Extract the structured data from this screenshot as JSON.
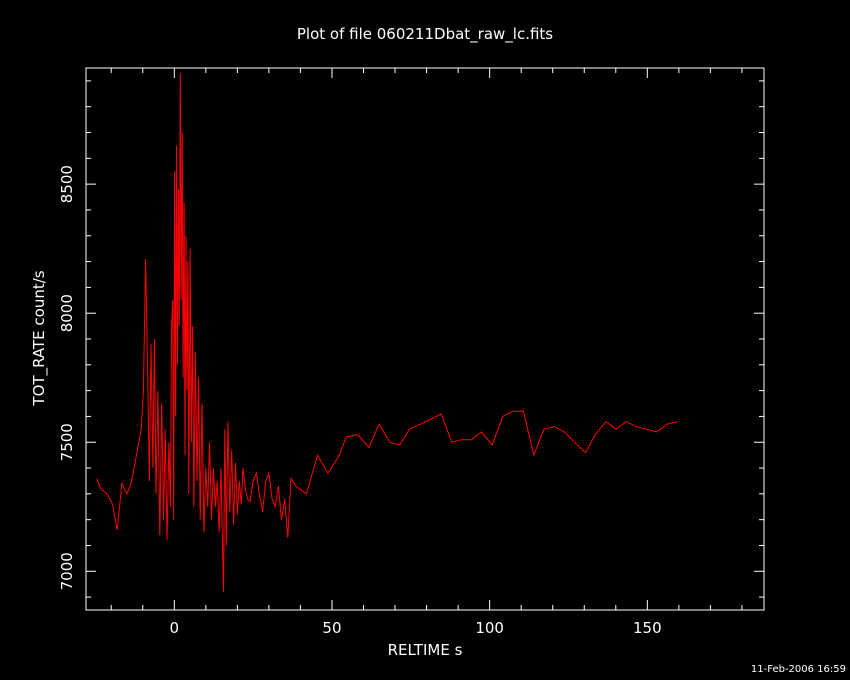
{
  "chart_data": {
    "type": "line",
    "title": "Plot of file 060211Dbat_raw_lc.fits",
    "xlabel": "RELTIME  s",
    "ylabel": "TOT_RATE  count/s",
    "xlim": [
      -28,
      187
    ],
    "ylim": [
      6850,
      8950
    ],
    "x_ticks": [
      0,
      50,
      100,
      150
    ],
    "y_ticks": [
      7000,
      7500,
      8000,
      8500
    ],
    "grid": false,
    "legend": "none",
    "series": [
      {
        "color": "#ff0000",
        "points": [
          [
            -24.6,
            7360
          ],
          [
            -23.4,
            7320
          ],
          [
            -21.3,
            7300
          ],
          [
            -19.6,
            7260
          ],
          [
            -18.1,
            7160
          ],
          [
            -16.6,
            7340
          ],
          [
            -15.0,
            7300
          ],
          [
            -13.7,
            7340
          ],
          [
            -12.0,
            7450
          ],
          [
            -10.5,
            7550
          ],
          [
            -9.8,
            7700
          ],
          [
            -9.1,
            8210
          ],
          [
            -8.5,
            7800
          ],
          [
            -7.9,
            7350
          ],
          [
            -7.4,
            7880
          ],
          [
            -6.8,
            7400
          ],
          [
            -6.3,
            7900
          ],
          [
            -5.8,
            7300
          ],
          [
            -5.2,
            7700
          ],
          [
            -4.6,
            7140
          ],
          [
            -4.0,
            7650
          ],
          [
            -3.4,
            7200
          ],
          [
            -2.9,
            7550
          ],
          [
            -2.3,
            7120
          ],
          [
            -1.7,
            7500
          ],
          [
            -1.2,
            7250
          ],
          [
            -0.9,
            7950
          ],
          [
            -0.5,
            8050
          ],
          [
            -0.2,
            7200
          ],
          [
            0.1,
            8550
          ],
          [
            0.4,
            7600
          ],
          [
            0.7,
            8650
          ],
          [
            1.0,
            7800
          ],
          [
            1.3,
            8480
          ],
          [
            1.6,
            7950
          ],
          [
            1.9,
            8930
          ],
          [
            2.2,
            8050
          ],
          [
            2.5,
            8700
          ],
          [
            2.8,
            7750
          ],
          [
            3.1,
            8430
          ],
          [
            3.4,
            7450
          ],
          [
            3.7,
            8300
          ],
          [
            4.0,
            7700
          ],
          [
            4.3,
            8200
          ],
          [
            4.6,
            7300
          ],
          [
            5.0,
            8250
          ],
          [
            5.4,
            7500
          ],
          [
            5.8,
            7950
          ],
          [
            6.2,
            7250
          ],
          [
            6.7,
            7850
          ],
          [
            7.2,
            7350
          ],
          [
            7.7,
            7750
          ],
          [
            8.2,
            7200
          ],
          [
            8.8,
            7650
          ],
          [
            9.4,
            7150
          ],
          [
            10.0,
            7400
          ],
          [
            10.6,
            7250
          ],
          [
            11.2,
            7500
          ],
          [
            11.8,
            7200
          ],
          [
            12.4,
            7400
          ],
          [
            13.0,
            7250
          ],
          [
            13.6,
            7350
          ],
          [
            14.2,
            7150
          ],
          [
            14.8,
            7400
          ],
          [
            15.3,
            7100
          ],
          [
            15.6,
            6920
          ],
          [
            16.0,
            7550
          ],
          [
            16.5,
            7100
          ],
          [
            17.0,
            7580
          ],
          [
            17.6,
            7230
          ],
          [
            18.2,
            7470
          ],
          [
            18.8,
            7180
          ],
          [
            19.4,
            7420
          ],
          [
            20.0,
            7220
          ],
          [
            20.6,
            7350
          ],
          [
            21.2,
            7260
          ],
          [
            21.8,
            7400
          ],
          [
            22.5,
            7320
          ],
          [
            23.2,
            7280
          ],
          [
            24.0,
            7270
          ],
          [
            25.0,
            7350
          ],
          [
            26.0,
            7380
          ],
          [
            27.0,
            7300
          ],
          [
            28.0,
            7230
          ],
          [
            29.0,
            7350
          ],
          [
            30.0,
            7380
          ],
          [
            31.0,
            7280
          ],
          [
            32.0,
            7250
          ],
          [
            33.0,
            7330
          ],
          [
            34.0,
            7200
          ],
          [
            35.0,
            7280
          ],
          [
            36.0,
            7130
          ],
          [
            37.0,
            7360
          ],
          [
            38.6,
            7330
          ],
          [
            41.9,
            7300
          ],
          [
            45.4,
            7450
          ],
          [
            48.7,
            7380
          ],
          [
            51.9,
            7440
          ],
          [
            54.6,
            7520
          ],
          [
            58.2,
            7530
          ],
          [
            61.7,
            7480
          ],
          [
            64.9,
            7570
          ],
          [
            68.3,
            7500
          ],
          [
            71.5,
            7490
          ],
          [
            74.6,
            7550
          ],
          [
            78.0,
            7570
          ],
          [
            81.4,
            7590
          ],
          [
            84.6,
            7610
          ],
          [
            88.0,
            7500
          ],
          [
            91.0,
            7510
          ],
          [
            94.3,
            7510
          ],
          [
            97.4,
            7540
          ],
          [
            100.8,
            7490
          ],
          [
            104.2,
            7600
          ],
          [
            107.4,
            7620
          ],
          [
            110.7,
            7620
          ],
          [
            114.0,
            7450
          ],
          [
            117.2,
            7550
          ],
          [
            120.6,
            7560
          ],
          [
            123.7,
            7540
          ],
          [
            126.9,
            7500
          ],
          [
            130.4,
            7460
          ],
          [
            133.5,
            7530
          ],
          [
            136.9,
            7580
          ],
          [
            140.1,
            7550
          ],
          [
            143.3,
            7580
          ],
          [
            146.6,
            7560
          ],
          [
            149.8,
            7550
          ],
          [
            153.0,
            7540
          ],
          [
            156.2,
            7570
          ],
          [
            159.5,
            7580
          ]
        ]
      }
    ]
  },
  "footer": {
    "timestamp": "11-Feb-2006 16:59"
  }
}
